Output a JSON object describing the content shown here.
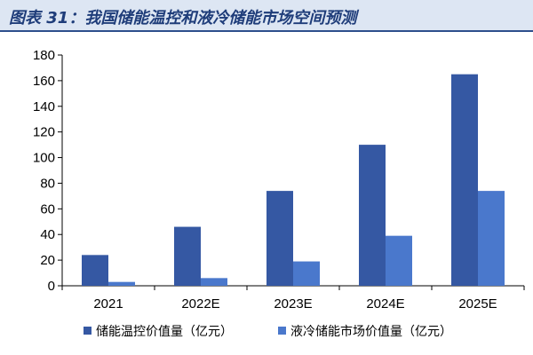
{
  "header": {
    "title": "图表 31：我国储能温控和液冷储能市场空间预测"
  },
  "colors": {
    "series1": "#3558a3",
    "series2": "#4a78cc",
    "header_bg": "#dde6f3",
    "header_line": "#2e4f8c"
  },
  "chart_data": {
    "type": "bar",
    "title": "",
    "xlabel": "",
    "ylabel": "",
    "categories": [
      "2021",
      "2022E",
      "2023E",
      "2024E",
      "2025E"
    ],
    "series": [
      {
        "name": "储能温控价值量（亿元）",
        "values": [
          24,
          46,
          74,
          110,
          165
        ]
      },
      {
        "name": "液冷储能市场价值量（亿元）",
        "values": [
          3,
          6,
          19,
          39,
          74
        ]
      }
    ],
    "ylim": [
      0,
      180
    ],
    "yticks": [
      0,
      20,
      40,
      60,
      80,
      100,
      120,
      140,
      160,
      180
    ],
    "grid": false,
    "legend": "bottom"
  }
}
